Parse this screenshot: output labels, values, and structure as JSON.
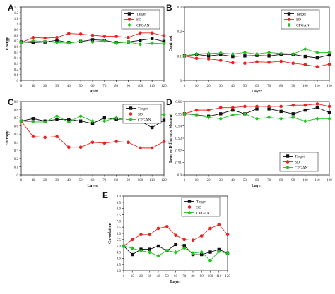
{
  "colors": {
    "target": "#111111",
    "sd": "#e8221f",
    "cpgan": "#1fc41f",
    "axis": "#222222"
  },
  "legend_labels": [
    "Target",
    "SD",
    "CPGAN"
  ],
  "chart_data": [
    {
      "panel": "A",
      "type": "line",
      "xlabel": "Layer",
      "ylabel": "Energy",
      "ylim": [
        0,
        1.3
      ],
      "yticks": [
        "0",
        "0.1",
        "0.2",
        "0.3",
        "0.4",
        "0.5",
        "0.6",
        "0.7",
        "0.8",
        "0.9",
        "1",
        "1.1",
        "1.2",
        "1.3"
      ],
      "xlim": [
        0,
        120
      ],
      "x": [
        0,
        10,
        20,
        30,
        40,
        50,
        60,
        70,
        80,
        90,
        100,
        110,
        120
      ],
      "legend_position": "top-right",
      "series": [
        {
          "name": "Target",
          "values": [
            0.68,
            0.67,
            0.68,
            0.71,
            0.67,
            0.69,
            0.72,
            0.71,
            0.67,
            0.68,
            0.71,
            0.74,
            0.69
          ]
        },
        {
          "name": "SD",
          "values": [
            0.67,
            0.76,
            0.75,
            0.76,
            0.83,
            0.82,
            0.8,
            0.78,
            0.78,
            0.76,
            0.84,
            0.84,
            0.79
          ]
        },
        {
          "name": "CPGAN",
          "values": [
            0.67,
            0.7,
            0.69,
            0.67,
            0.66,
            0.69,
            0.68,
            0.7,
            0.66,
            0.68,
            0.64,
            0.66,
            0.65
          ]
        }
      ]
    },
    {
      "panel": "B",
      "type": "line",
      "xlabel": "Layer",
      "ylabel": "Contrast",
      "ylim": [
        0,
        0.3
      ],
      "yticks": [
        "0",
        "0.1",
        "0.2",
        "0.3"
      ],
      "xlim": [
        0,
        120
      ],
      "x": [
        0,
        10,
        20,
        30,
        40,
        50,
        60,
        70,
        80,
        90,
        100,
        110,
        120
      ],
      "legend_position": "top-right",
      "series": [
        {
          "name": "Target",
          "values": [
            0.1,
            0.106,
            0.1,
            0.105,
            0.098,
            0.1,
            0.102,
            0.1,
            0.106,
            0.106,
            0.098,
            0.092,
            0.104
          ]
        },
        {
          "name": "SD",
          "values": [
            0.1,
            0.09,
            0.088,
            0.082,
            0.072,
            0.07,
            0.076,
            0.074,
            0.078,
            0.07,
            0.064,
            0.056,
            0.066
          ]
        },
        {
          "name": "CPGAN",
          "values": [
            0.1,
            0.108,
            0.11,
            0.112,
            0.108,
            0.114,
            0.108,
            0.114,
            0.11,
            0.108,
            0.128,
            0.114,
            0.114
          ]
        }
      ]
    },
    {
      "panel": "C",
      "type": "line",
      "xlabel": "Layer",
      "ylabel": "Entropy",
      "ylim": [
        0,
        0.9
      ],
      "yticks": [
        "0",
        "0.1",
        "0.2",
        "0.3",
        "0.4",
        "0.5",
        "0.6",
        "0.7",
        "0.8",
        "0.9"
      ],
      "xlim": [
        0,
        120
      ],
      "x": [
        0,
        10,
        20,
        30,
        40,
        50,
        60,
        70,
        80,
        90,
        100,
        110,
        120
      ],
      "legend_position": "top-right",
      "series": [
        {
          "name": "Target",
          "values": [
            0.66,
            0.69,
            0.66,
            0.68,
            0.68,
            0.66,
            0.63,
            0.7,
            0.68,
            0.69,
            0.66,
            0.58,
            0.67
          ]
        },
        {
          "name": "SD",
          "values": [
            0.66,
            0.47,
            0.46,
            0.47,
            0.34,
            0.34,
            0.4,
            0.39,
            0.41,
            0.4,
            0.33,
            0.33,
            0.41
          ]
        },
        {
          "name": "CPGAN",
          "values": [
            0.66,
            0.65,
            0.65,
            0.72,
            0.65,
            0.72,
            0.66,
            0.66,
            0.7,
            0.67,
            0.76,
            0.73,
            0.74
          ]
        }
      ]
    },
    {
      "panel": "D",
      "type": "line",
      "xlabel": "Layer",
      "ylabel": "Inverse Difference Moment",
      "ylim": [
        0.9,
        0.96
      ],
      "yticks": [
        "0.9",
        "0.91",
        "0.92",
        "0.93",
        "0.94",
        "0.95",
        "0.96"
      ],
      "xlim": [
        0,
        120
      ],
      "x": [
        0,
        10,
        20,
        30,
        40,
        50,
        60,
        70,
        80,
        90,
        100,
        110,
        120
      ],
      "legend_position": "bottom-right",
      "series": [
        {
          "name": "Target",
          "values": [
            0.95,
            0.949,
            0.948,
            0.95,
            0.953,
            0.95,
            0.954,
            0.954,
            0.952,
            0.95,
            0.953,
            0.955,
            0.951
          ]
        },
        {
          "name": "SD",
          "values": [
            0.95,
            0.953,
            0.953,
            0.955,
            0.955,
            0.956,
            0.956,
            0.956,
            0.956,
            0.957,
            0.957,
            0.958,
            0.956
          ]
        },
        {
          "name": "CPGAN",
          "values": [
            0.95,
            0.949,
            0.947,
            0.946,
            0.949,
            0.95,
            0.946,
            0.947,
            0.946,
            0.947,
            0.944,
            0.946,
            0.946
          ]
        }
      ]
    },
    {
      "panel": "E",
      "type": "line",
      "xlabel": "Layer",
      "ylabel": "Correlation",
      "ylim": [
        3.0,
        9.0
      ],
      "yticks": [
        "3.0",
        "3.5",
        "4.0",
        "4.5",
        "5.0",
        "5.5",
        "6.0",
        "6.5",
        "7.0",
        "7.5",
        "8.0",
        "8.5",
        "9.0"
      ],
      "xlim": [
        0,
        120
      ],
      "x": [
        0,
        10,
        20,
        30,
        40,
        50,
        60,
        70,
        80,
        90,
        100,
        110,
        120
      ],
      "legend_position": "top-right",
      "series": [
        {
          "name": "Target",
          "values": [
            4.98,
            4.3,
            4.72,
            4.72,
            4.98,
            4.6,
            5.1,
            5.02,
            4.3,
            4.3,
            4.5,
            4.7,
            4.42
          ]
        },
        {
          "name": "SD",
          "values": [
            4.98,
            5.5,
            5.9,
            5.9,
            6.4,
            6.55,
            5.85,
            5.5,
            5.45,
            5.8,
            6.4,
            6.7,
            5.9
          ]
        },
        {
          "name": "CPGAN",
          "values": [
            4.98,
            4.8,
            4.6,
            4.48,
            4.2,
            4.62,
            4.48,
            4.82,
            4.42,
            4.5,
            3.82,
            4.55,
            4.38
          ]
        }
      ]
    }
  ]
}
